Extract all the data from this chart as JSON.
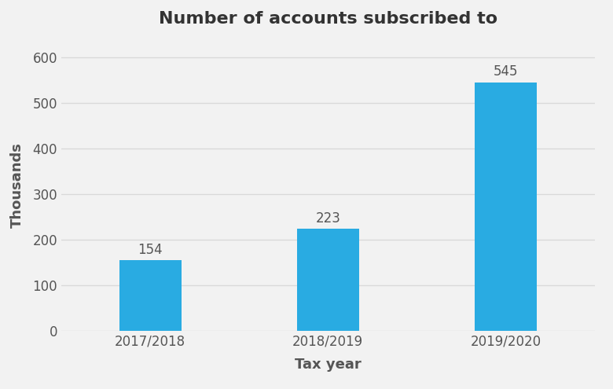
{
  "categories": [
    "2017/2018",
    "2018/2019",
    "2019/2020"
  ],
  "values": [
    154,
    223,
    545
  ],
  "bar_color": "#29abe2",
  "title": "Number of accounts subscribed to",
  "xlabel": "Tax year",
  "ylabel": "Thousands",
  "ylim": [
    0,
    640
  ],
  "yticks": [
    0,
    100,
    200,
    300,
    400,
    500,
    600
  ],
  "title_fontsize": 16,
  "label_fontsize": 13,
  "tick_fontsize": 12,
  "annotation_fontsize": 12,
  "bar_width": 0.35,
  "background_color": "#f2f2f2",
  "grid_color": "#d9d9d9",
  "text_color": "#555555"
}
